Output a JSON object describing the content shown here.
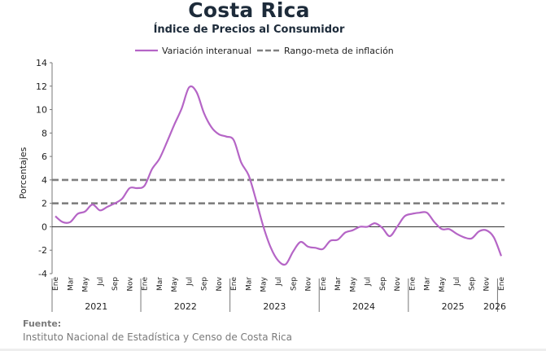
{
  "title": "Costa Rica",
  "subtitle": "Índice de Precios al Consumidor",
  "source_label": "Fuente:",
  "source_text": "Instituto Nacional de Estadística y Censo de Costa Rica",
  "chart_data": {
    "type": "line",
    "ylabel": "Porcentajes",
    "xlabel": "",
    "ylim": [
      -4,
      14
    ],
    "yticks": [
      -4,
      -2,
      0,
      2,
      4,
      6,
      8,
      10,
      12,
      14
    ],
    "grid": false,
    "legend_position": "top",
    "x_tick_labels": [
      "Ene",
      "Mar",
      "May",
      "Jul",
      "Sep",
      "Nov",
      "Ene",
      "Mar",
      "May",
      "Jul",
      "Sep",
      "Nov",
      "Ene",
      "Mar",
      "May",
      "Jul",
      "Sep",
      "Nov",
      "Ene",
      "Mar",
      "May",
      "Jul",
      "Sep",
      "Nov",
      "Ene",
      "Mar",
      "May",
      "Jul",
      "Sep",
      "Nov",
      "Ene"
    ],
    "years": [
      "2021",
      "2022",
      "2023",
      "2024",
      "2025",
      "2026"
    ],
    "x": [
      "2021-01",
      "2021-02",
      "2021-03",
      "2021-04",
      "2021-05",
      "2021-06",
      "2021-07",
      "2021-08",
      "2021-09",
      "2021-10",
      "2021-11",
      "2021-12",
      "2022-01",
      "2022-02",
      "2022-03",
      "2022-04",
      "2022-05",
      "2022-06",
      "2022-07",
      "2022-08",
      "2022-09",
      "2022-10",
      "2022-11",
      "2022-12",
      "2023-01",
      "2023-02",
      "2023-03",
      "2023-04",
      "2023-05",
      "2023-06",
      "2023-07",
      "2023-08",
      "2023-09",
      "2023-10",
      "2023-11",
      "2023-12",
      "2024-01",
      "2024-02",
      "2024-03",
      "2024-04",
      "2024-05",
      "2024-06",
      "2024-07",
      "2024-08",
      "2024-09",
      "2024-10",
      "2024-11",
      "2024-12",
      "2025-01",
      "2025-02",
      "2025-03",
      "2025-04",
      "2025-05",
      "2025-06",
      "2025-07",
      "2025-08",
      "2025-09",
      "2025-10",
      "2025-11",
      "2025-12",
      "2026-01"
    ],
    "series": [
      {
        "name": "Variación interanual",
        "color": "#b565c6",
        "style": "solid",
        "values": [
          0.9,
          0.4,
          0.4,
          1.1,
          1.3,
          1.9,
          1.4,
          1.7,
          2.0,
          2.4,
          3.3,
          3.3,
          3.5,
          4.9,
          5.8,
          7.2,
          8.7,
          10.1,
          11.9,
          11.5,
          9.7,
          8.5,
          7.9,
          7.7,
          7.4,
          5.5,
          4.4,
          2.3,
          0.0,
          -1.8,
          -2.9,
          -3.2,
          -2.1,
          -1.3,
          -1.7,
          -1.8,
          -1.9,
          -1.2,
          -1.1,
          -0.5,
          -0.3,
          0.0,
          0.0,
          0.3,
          -0.1,
          -0.8,
          0.0,
          0.9,
          1.1,
          1.2,
          1.2,
          0.4,
          -0.2,
          -0.2,
          -0.6,
          -0.9,
          -1.0,
          -0.4,
          -0.3,
          -0.9,
          -2.5
        ]
      },
      {
        "name": "Rango-meta de inflación",
        "color": "#808080",
        "style": "dashed",
        "lines": [
          2,
          4
        ]
      }
    ]
  }
}
